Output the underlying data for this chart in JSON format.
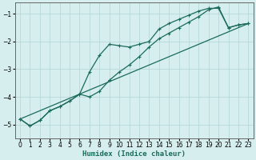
{
  "xlabel": "Humidex (Indice chaleur)",
  "ylabel": "",
  "bg_color": "#d6eeee",
  "grid_color": "#b8d8d8",
  "line_color": "#1a6b5a",
  "xlim": [
    -0.5,
    23.5
  ],
  "ylim": [
    -5.5,
    -0.6
  ],
  "x_ticks": [
    0,
    1,
    2,
    3,
    4,
    5,
    6,
    7,
    8,
    9,
    10,
    11,
    12,
    13,
    14,
    15,
    16,
    17,
    18,
    19,
    20,
    21,
    22,
    23
  ],
  "y_ticks": [
    -5,
    -4,
    -3,
    -2,
    -1
  ],
  "line1_x": [
    0,
    1,
    2,
    3,
    4,
    5,
    6,
    7,
    8,
    9,
    10,
    11,
    12,
    13,
    14,
    15,
    16,
    17,
    18,
    19,
    20,
    21,
    22,
    23
  ],
  "line1_y": [
    -4.8,
    -5.05,
    -4.85,
    -4.5,
    -4.35,
    -4.15,
    -3.9,
    -4.0,
    -3.8,
    -3.4,
    -3.1,
    -2.85,
    -2.55,
    -2.2,
    -1.9,
    -1.7,
    -1.5,
    -1.3,
    -1.1,
    -0.85,
    -0.75,
    -1.5,
    -1.4,
    -1.35
  ],
  "line2_x": [
    0,
    1,
    2,
    3,
    4,
    5,
    6,
    7,
    8,
    9,
    10,
    11,
    12,
    13,
    14,
    15,
    16,
    17,
    18,
    19,
    20,
    21,
    22,
    23
  ],
  "line2_y": [
    -4.8,
    -5.05,
    -4.85,
    -4.5,
    -4.35,
    -4.15,
    -3.9,
    -3.1,
    -2.5,
    -2.1,
    -2.15,
    -2.2,
    -2.1,
    -2.0,
    -1.55,
    -1.35,
    -1.2,
    -1.05,
    -0.9,
    -0.8,
    -0.8,
    -1.5,
    -1.4,
    -1.35
  ],
  "line3_x": [
    0,
    23
  ],
  "line3_y": [
    -4.8,
    -1.35
  ],
  "tick_fontsize": 5.5,
  "xlabel_fontsize": 6.5
}
